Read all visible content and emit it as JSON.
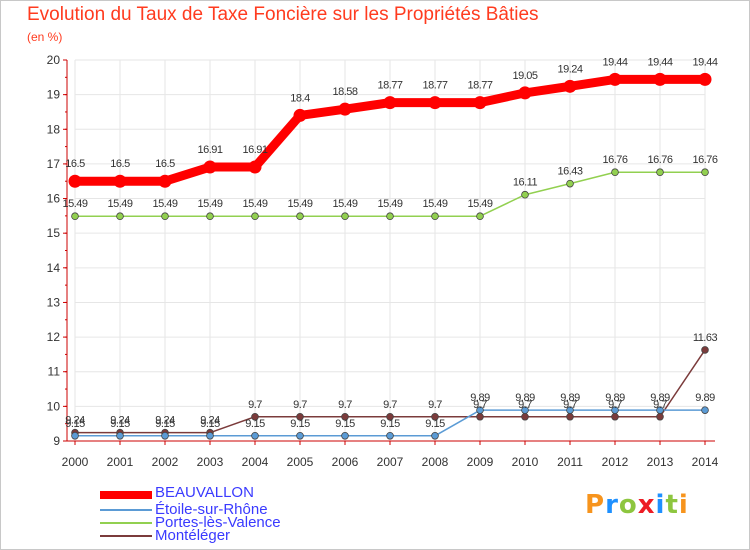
{
  "chart_data": {
    "type": "line",
    "title": "Evolution du Taux de Taxe Foncière sur les Propriétés Bâties",
    "ylabel": "(en %)",
    "xlabel": "",
    "ylim": [
      9,
      20
    ],
    "yticks": [
      9,
      10,
      11,
      12,
      13,
      14,
      15,
      16,
      17,
      18,
      19,
      20
    ],
    "categories": [
      "2000",
      "2001",
      "2002",
      "2003",
      "2004",
      "2005",
      "2006",
      "2007",
      "2008",
      "2009",
      "2010",
      "2011",
      "2012",
      "2013",
      "2014"
    ],
    "series": [
      {
        "name": "BEAUVALLON",
        "color": "#ff0000",
        "values": [
          16.5,
          16.5,
          16.5,
          16.91,
          16.91,
          18.4,
          18.58,
          18.77,
          18.77,
          18.77,
          19.05,
          19.24,
          19.44,
          19.44,
          19.44
        ],
        "labels": [
          "16.5",
          "16.5",
          "16.5",
          "16.91",
          "16.91",
          "18.4",
          "18.58",
          "18.77",
          "18.77",
          "18.77",
          "19.05",
          "19.24",
          "19.44",
          "19.44",
          "19.44"
        ]
      },
      {
        "name": "Étoile-sur-Rhône",
        "color": "#5b9bd5",
        "values": [
          9.15,
          9.15,
          9.15,
          9.15,
          9.15,
          9.15,
          9.15,
          9.15,
          9.15,
          9.89,
          9.89,
          9.89,
          9.89,
          9.89,
          9.89
        ],
        "labels": [
          "9.15",
          "9.15",
          "9.15",
          "9.15",
          "9.15",
          "9.15",
          "9.15",
          "9.15",
          "9.15",
          "9.89",
          "9.89",
          "9.89",
          "9.89",
          "9.89",
          "9.89"
        ]
      },
      {
        "name": "Portes-lès-Valence",
        "color": "#92d050",
        "values": [
          15.49,
          15.49,
          15.49,
          15.49,
          15.49,
          15.49,
          15.49,
          15.49,
          15.49,
          15.49,
          16.11,
          16.43,
          16.76,
          16.76,
          16.76
        ],
        "labels": [
          "15.49",
          "15.49",
          "15.49",
          "15.49",
          "15.49",
          "15.49",
          "15.49",
          "15.49",
          "15.49",
          "15.49",
          "16.11",
          "16.43",
          "16.76",
          "16.76",
          "16.76"
        ]
      },
      {
        "name": "Montéléger",
        "color": "#7b3b3b",
        "values": [
          9.24,
          9.24,
          9.24,
          9.24,
          9.7,
          9.7,
          9.7,
          9.7,
          9.7,
          9.7,
          9.7,
          9.7,
          9.7,
          9.7,
          11.63
        ],
        "labels": [
          "9.24",
          "9.24",
          "9.24",
          "9.24",
          "9.7",
          "9.7",
          "9.7",
          "9.7",
          "9.7",
          "9.7",
          "9.7",
          "9.7",
          "9.7",
          "9.7",
          "11.63"
        ]
      }
    ]
  },
  "logo": {
    "text": "Proxiti",
    "letters": [
      "P",
      "r",
      "o",
      "x",
      "i",
      "t",
      "i"
    ],
    "colors": [
      "#f7941d",
      "#1e90ff",
      "#8dc63f",
      "#ed1c24",
      "#1e90ff",
      "#8dc63f",
      "#f7941d"
    ]
  }
}
